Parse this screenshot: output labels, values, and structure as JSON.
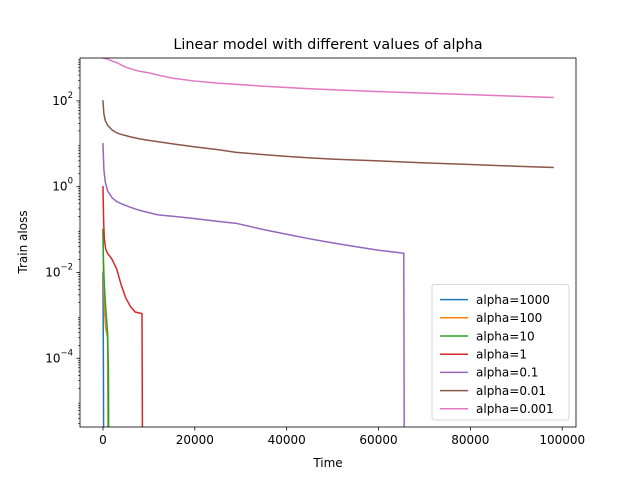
{
  "chart_data": {
    "type": "line",
    "title": "Linear model with different values of alpha",
    "xlabel": "Time",
    "ylabel": "Train aloss",
    "xlim": [
      -5000,
      103000
    ],
    "ylim": [
      2.5e-06,
      1000
    ],
    "yscale": "log",
    "x_ticks": [
      0,
      20000,
      40000,
      60000,
      80000,
      100000
    ],
    "x_tick_labels": [
      "0",
      "20000",
      "40000",
      "60000",
      "80000",
      "100000"
    ],
    "y_ticks": [
      0.0001,
      0.01,
      1,
      100
    ],
    "y_tick_labels": [
      {
        "base": "10",
        "exp": "−4"
      },
      {
        "base": "10",
        "exp": "−2"
      },
      {
        "base": "10",
        "exp": "0"
      },
      {
        "base": "10",
        "exp": "2"
      }
    ],
    "grid": false,
    "legend_position": "lower-right",
    "series": [
      {
        "name": "alpha=1000",
        "color": "#1f77b4",
        "x": [
          0,
          30,
          60,
          100,
          150
        ],
        "y": [
          0.01,
          0.002,
          0.0005,
          5e-05,
          1e-06
        ]
      },
      {
        "name": "alpha=100",
        "color": "#ff7f0e",
        "x": [
          0,
          100,
          300,
          600,
          1000,
          1100
        ],
        "y": [
          0.1,
          0.01,
          0.0015,
          0.0005,
          0.0003,
          1e-06
        ]
      },
      {
        "name": "alpha=10",
        "color": "#2ca02c",
        "x": [
          0,
          100,
          300,
          600,
          1000,
          1200,
          1250
        ],
        "y": [
          0.1,
          0.02,
          0.005,
          0.0015,
          0.0004,
          5e-05,
          1e-06
        ]
      },
      {
        "name": "alpha=1",
        "color": "#d62728",
        "x": [
          0,
          150,
          300,
          600,
          1000,
          1500,
          2000,
          3000,
          4000,
          5000,
          6000,
          7000,
          8500,
          8600
        ],
        "y": [
          1,
          0.15,
          0.06,
          0.035,
          0.028,
          0.024,
          0.02,
          0.012,
          0.005,
          0.0025,
          0.0016,
          0.0012,
          0.0011,
          1e-06
        ]
      },
      {
        "name": "alpha=0.1",
        "color": "#9467bd",
        "x": [
          0,
          200,
          500,
          1000,
          2000,
          3000,
          4000,
          6000,
          8000,
          12000,
          16000,
          20000,
          25000,
          29000,
          35000,
          40000,
          45000,
          50000,
          55000,
          60000,
          65500,
          65600
        ],
        "y": [
          10,
          2.5,
          1.3,
          0.8,
          0.55,
          0.45,
          0.4,
          0.33,
          0.28,
          0.22,
          0.2,
          0.18,
          0.155,
          0.14,
          0.1,
          0.078,
          0.061,
          0.049,
          0.04,
          0.033,
          0.028,
          1e-06
        ]
      },
      {
        "name": "alpha=0.01",
        "color": "#8c564b",
        "x": [
          0,
          200,
          500,
          1000,
          2000,
          3000,
          4000,
          6000,
          8000,
          10000,
          15000,
          20000,
          25000,
          29000,
          35000,
          40000,
          45000,
          50000,
          60000,
          70000,
          80000,
          90000,
          98000
        ],
        "y": [
          100,
          50,
          35,
          27,
          21,
          18,
          16.5,
          14.5,
          13,
          12,
          10,
          8.5,
          7.3,
          6.3,
          5.6,
          5.1,
          4.7,
          4.4,
          4,
          3.6,
          3.3,
          3,
          2.8
        ]
      },
      {
        "name": "alpha=0.001",
        "color": "#e377c2",
        "x": [
          0,
          1000,
          2000,
          3000,
          4000,
          5000,
          6000,
          8000,
          10000,
          12000,
          15000,
          20000,
          25000,
          30000,
          35000,
          40000,
          45000,
          50000,
          60000,
          70000,
          80000,
          90000,
          98000
        ],
        "y": [
          1000,
          950,
          850,
          780,
          690,
          610,
          560,
          490,
          450,
          400,
          340,
          290,
          260,
          240,
          220,
          205,
          192,
          182,
          165,
          152,
          140,
          128,
          120
        ]
      }
    ]
  }
}
